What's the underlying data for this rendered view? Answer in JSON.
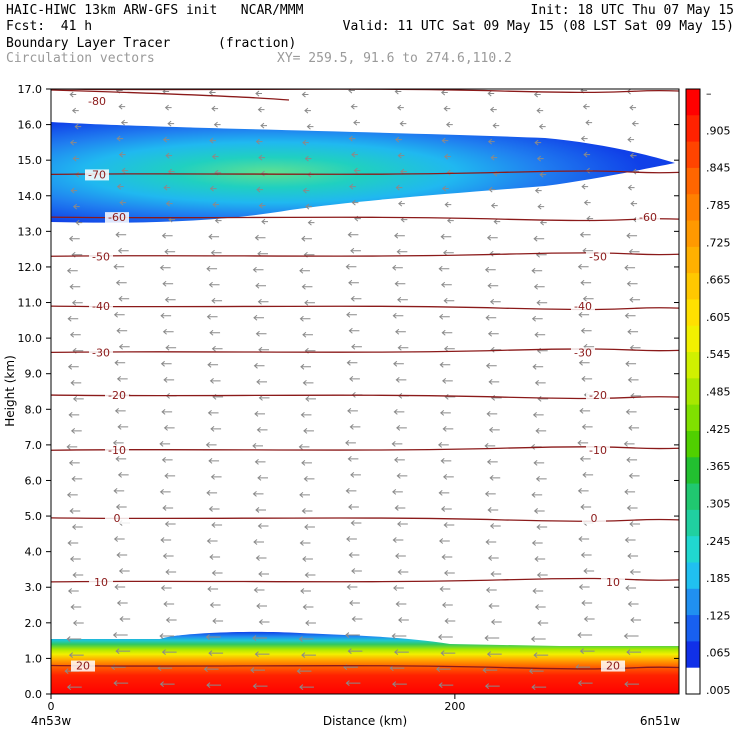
{
  "header": {
    "model_line": "HAIC-HIWC 13km ARW-GFS init   NCAR/MMM",
    "init": "Init: 18 UTC Thu 07 May 15",
    "fcst": "Fcst:  41 h",
    "valid": "Valid: 11 UTC Sat 09 May 15 (08 LST Sat 09 May 15)",
    "field_name": "Boundary Layer Tracer",
    "field_unit": "(fraction)",
    "overlay": "Circulation vectors",
    "xy": "XY= 259.5, 91.6 to 274.6,110.2"
  },
  "chart_data": {
    "type": "heatmap",
    "xlabel": "Distance (km)",
    "ylabel": "Height (km)",
    "x_start_label": "4n53w",
    "x_end_label": "6n51w",
    "xlim": [
      0,
      311
    ],
    "ylim": [
      0,
      17
    ],
    "x_ticks": [
      {
        "value": 0,
        "label": "0"
      },
      {
        "value": 200,
        "label": "200"
      }
    ],
    "y_ticks": [
      "0.0",
      "1.0",
      "2.0",
      "3.0",
      "4.0",
      "5.0",
      "6.0",
      "7.0",
      "8.0",
      "9.0",
      "10.0",
      "11.0",
      "12.0",
      "13.0",
      "14.0",
      "15.0",
      "16.0",
      "17.0"
    ],
    "colorbar": {
      "labels": [
        "–",
        ".905",
        ".845",
        ".785",
        ".725",
        ".665",
        ".605",
        ".545",
        ".485",
        ".425",
        ".365",
        ".305",
        ".245",
        ".185",
        ".125",
        ".065",
        ".005"
      ],
      "colors": [
        "#ff0000",
        "#ff2200",
        "#ff4400",
        "#ff6600",
        "#ff8000",
        "#ff9900",
        "#ffb000",
        "#ffc800",
        "#ffe000",
        "#f2f000",
        "#d0f000",
        "#a8e800",
        "#80e000",
        "#50d000",
        "#22c030",
        "#20c870",
        "#20d0a0",
        "#20d8d0",
        "#20c0f0",
        "#2090f0",
        "#1860f0",
        "#1030e8",
        "#ffffff"
      ]
    },
    "temperature_contours": [
      {
        "label": "-80",
        "height": 17.0
      },
      {
        "label": "-70",
        "height": 14.6
      },
      {
        "label": "-60",
        "height": 13.4
      },
      {
        "label": "-50",
        "height": 12.3
      },
      {
        "label": "-40",
        "height": 10.9
      },
      {
        "label": "-30",
        "height": 9.6
      },
      {
        "label": "-20",
        "height": 8.4
      },
      {
        "label": "-10",
        "height": 6.85
      },
      {
        "label": "0",
        "height": 4.95
      },
      {
        "label": "10",
        "height": 3.15
      },
      {
        "label": "20",
        "height": 0.8
      }
    ],
    "tracer_layers": [
      {
        "name": "boundary layer",
        "height_range": [
          0.0,
          1.6
        ],
        "max_value": 0.95
      },
      {
        "name": "upper plume",
        "height_range": [
          13.2,
          15.5
        ],
        "max_value": 0.25
      }
    ]
  }
}
